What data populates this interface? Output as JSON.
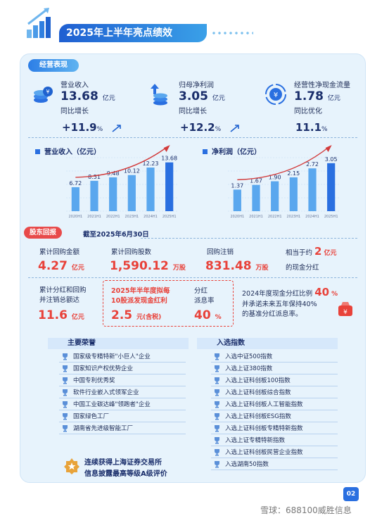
{
  "header": {
    "title": "2025年上半年亮点绩效"
  },
  "section_ops": {
    "label": "经营表现"
  },
  "metrics": [
    {
      "label": "营业收入",
      "value": "13.68",
      "unit": "亿元",
      "sub": "同比增长",
      "pct": "+11.9",
      "pct_unit": "%"
    },
    {
      "label": "归母净利润",
      "value": "3.05",
      "unit": "亿元",
      "sub": "同比增长",
      "pct": "+12.2",
      "pct_unit": "%"
    },
    {
      "label": "经营性净现金流量",
      "value": "1.78",
      "unit": "亿元",
      "sub": "同比优化",
      "pct": "11.1",
      "pct_unit": "%"
    }
  ],
  "chart_data": [
    {
      "type": "bar",
      "title": "营业收入（亿元）",
      "categories": [
        "2020H1",
        "2021H1",
        "2022H1",
        "2023H1",
        "2024H1",
        "2025H1"
      ],
      "values": [
        6.72,
        8.51,
        9.48,
        10.12,
        12.23,
        13.68
      ],
      "value_labels": [
        "6.72",
        "8.51",
        "9.48",
        "10.12",
        "12.23",
        "13.68"
      ],
      "ylim": [
        0,
        15
      ],
      "grid": true,
      "colors": [
        "#2a6fe0",
        "#5aa7ee"
      ]
    },
    {
      "type": "bar",
      "title": "净利润（亿元）",
      "categories": [
        "2020H1",
        "2021H1",
        "2022H1",
        "2023H1",
        "2024H1",
        "2025H1"
      ],
      "values": [
        1.37,
        1.67,
        1.9,
        2.15,
        2.72,
        3.05
      ],
      "value_labels": [
        "1.37",
        "1.67",
        "1.90",
        "2.15",
        "2.72",
        "3.05"
      ],
      "ylim": [
        0,
        3.4
      ],
      "grid": true,
      "colors": [
        "#2a6fe0",
        "#5aa7ee"
      ]
    }
  ],
  "buyback": {
    "tag": "股东回报",
    "date": "截至2025年6月30日",
    "amount_label": "累计回购金额",
    "amount_value": "4.27",
    "amount_unit": "亿元",
    "shares_label": "累计回购股数",
    "shares_value": "1,590.12",
    "shares_unit": "万股",
    "cancel_label": "回购注销",
    "cancel_value": "831.48",
    "cancel_unit": "万股",
    "equiv_prefix": "相当于约",
    "equiv_value": "2",
    "equiv_unit": "亿元",
    "equiv_suffix": "的现金分红",
    "total_label_1": "累计分红和回购",
    "total_label_2": "并注销总额达",
    "total_value": "11.6",
    "total_unit": "亿元",
    "div_plan_1": "2025年半年度拟每",
    "div_plan_2": "10股派发现金红利",
    "div_plan_value": "2.5",
    "div_plan_unit": "元(含税)",
    "payout_label_1": "分红",
    "payout_label_2": "派息率",
    "payout_value": "40",
    "payout_unit": "%",
    "ratio_line_1": "2024年度现金分红比例",
    "ratio_value": "40",
    "ratio_unit": "%",
    "ratio_line_2": "并承诺未来五年保持40%",
    "ratio_line_3": "的基准分红派息率。"
  },
  "honors": {
    "title": "主要荣誉",
    "items": [
      "国家级专精特新\"小巨人\"企业",
      "国家知识产权优势企业",
      "中国专利优秀奖",
      "软件行业嵌入式领军企业",
      "中国工业碳达峰\"领跑者\"企业",
      "国家绿色工厂",
      "湖南省先进级智能工厂"
    ],
    "footer_1": "连续获得上海证券交易所",
    "footer_2": "信息披露最高等级A级评价"
  },
  "indices": {
    "title": "入选指数",
    "items": [
      "入选中证500指数",
      "入选上证380指数",
      "入选上证科创板100指数",
      "入选上证科创板综合指数",
      "入选上证科创板人工智能指数",
      "入选上证科创板ESG指数",
      "入选上证科创板专精特新指数",
      "入选上证专精特新指数",
      "入选上证科创板民营企业指数",
      "入选湖南50指数"
    ]
  },
  "page_number": "02",
  "watermark": "雪球：688100威胜信息"
}
